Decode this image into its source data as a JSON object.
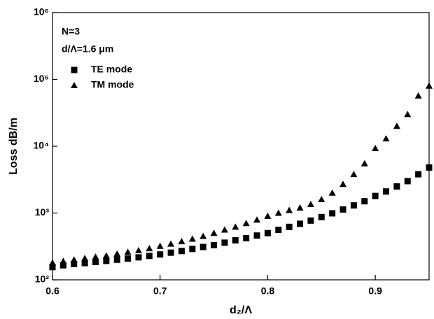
{
  "chart_data": {
    "type": "scatter",
    "xlabel": "d₂/Λ",
    "ylabel": "Loss dB/m",
    "annotations": [
      "N=3",
      "d/Λ=1.6 μm"
    ],
    "x": [
      0.6,
      0.61,
      0.62,
      0.63,
      0.64,
      0.65,
      0.66,
      0.67,
      0.68,
      0.69,
      0.7,
      0.71,
      0.72,
      0.73,
      0.74,
      0.75,
      0.76,
      0.77,
      0.78,
      0.79,
      0.8,
      0.81,
      0.82,
      0.83,
      0.84,
      0.85,
      0.86,
      0.87,
      0.88,
      0.89,
      0.9,
      0.91,
      0.92,
      0.93,
      0.94,
      0.95
    ],
    "series": [
      {
        "name": "TE mode",
        "marker": "square",
        "color": "#000000",
        "values": [
          155,
          165,
          172,
          178,
          185,
          192,
          200,
          208,
          217,
          228,
          240,
          255,
          270,
          290,
          310,
          330,
          360,
          390,
          420,
          460,
          500,
          560,
          620,
          690,
          770,
          870,
          990,
          1130,
          1300,
          1500,
          1800,
          2100,
          2500,
          3000,
          3800,
          4800
        ]
      },
      {
        "name": "TM mode",
        "marker": "triangle",
        "color": "#000000",
        "values": [
          180,
          190,
          200,
          210,
          220,
          230,
          245,
          260,
          275,
          295,
          320,
          345,
          375,
          410,
          450,
          500,
          560,
          620,
          700,
          790,
          900,
          1000,
          1100,
          1200,
          1350,
          1600,
          2000,
          2700,
          3800,
          5500,
          9300,
          13000,
          20000,
          30000,
          57000,
          80000
        ]
      }
    ],
    "xlim": [
      0.6,
      0.95
    ],
    "xticks": [
      0.6,
      0.7,
      0.8,
      0.9
    ],
    "ylim": [
      100,
      1000000
    ],
    "log_y": true,
    "yticks": [
      {
        "value": 100,
        "label": "10²"
      },
      {
        "value": 1000,
        "label": "10³"
      },
      {
        "value": 10000,
        "label": "10⁴"
      },
      {
        "value": 100000,
        "label": "10⁵"
      },
      {
        "value": 1000000,
        "label": "10⁶"
      }
    ]
  }
}
